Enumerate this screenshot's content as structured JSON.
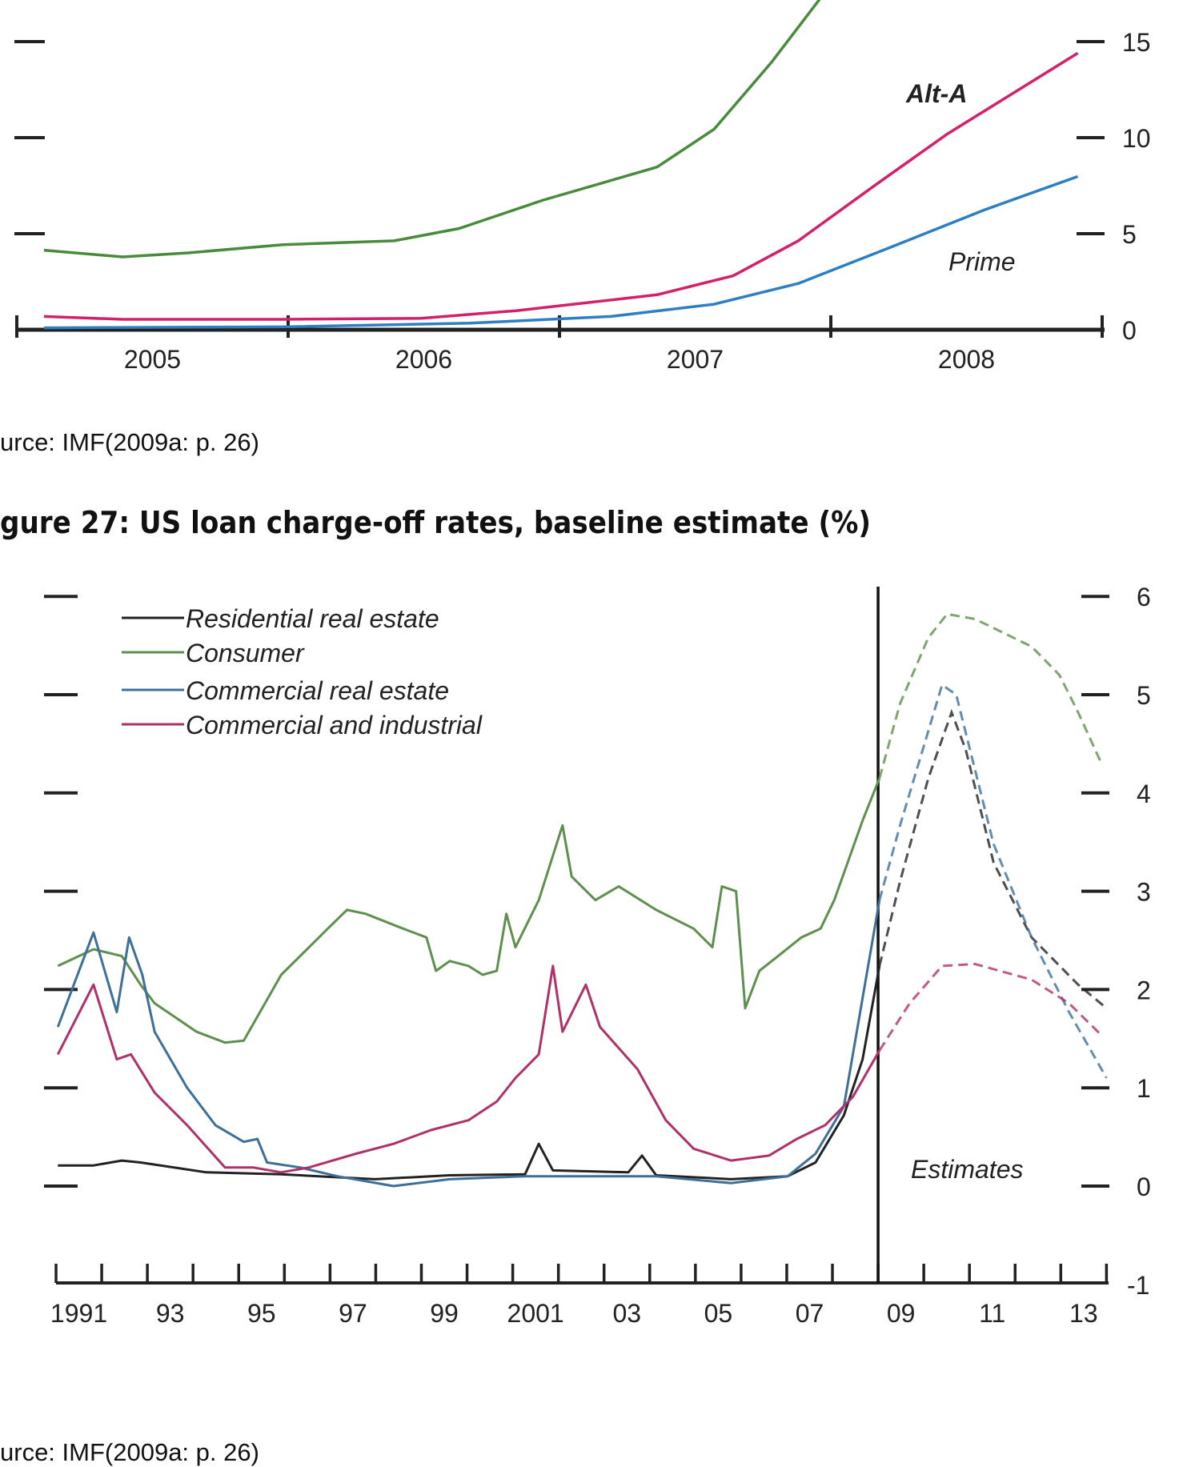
{
  "chart_data": [
    {
      "type": "line",
      "xlim": [
        2005,
        2009
      ],
      "ylim": [
        0,
        18
      ],
      "x_tick_labels": [
        {
          "label": "2005",
          "x": 2005.5
        },
        {
          "label": "2006",
          "x": 2006.5
        },
        {
          "label": "2007",
          "x": 2007.5
        },
        {
          "label": "2008",
          "x": 2008.5
        }
      ],
      "y_ticks": [
        0,
        5,
        10,
        15
      ],
      "y_tick_labels": [
        "0",
        "5",
        "10",
        "15"
      ],
      "annotations": [
        {
          "text": "Alt-A",
          "series": 1
        },
        {
          "text": "Prime",
          "series": 2
        }
      ],
      "colors": [
        "#4a8a3c",
        "#d4206a",
        "#2e7fc2"
      ],
      "series": [
        {
          "x": [
            2005.1,
            2005.39,
            2005.63,
            2005.98,
            2006.39,
            2006.63,
            2006.94,
            2007.36,
            2007.57,
            2007.78,
            2007.98
          ],
          "y": [
            4.14,
            3.79,
            4.0,
            4.43,
            4.63,
            5.27,
            6.75,
            8.47,
            10.44,
            13.9,
            17.6
          ]
        },
        {
          "x": [
            2005.1,
            2005.39,
            2005.98,
            2006.49,
            2006.84,
            2007.36,
            2007.64,
            2007.88,
            2008.16,
            2008.43,
            2008.91
          ],
          "y": [
            0.69,
            0.54,
            0.54,
            0.59,
            0.99,
            1.82,
            2.81,
            4.63,
            7.49,
            10.2,
            14.4
          ]
        },
        {
          "x": [
            2005.1,
            2005.98,
            2006.67,
            2007.19,
            2007.57,
            2007.88,
            2008.22,
            2008.57,
            2008.91
          ],
          "y": [
            0.1,
            0.15,
            0.34,
            0.69,
            1.33,
            2.41,
            4.29,
            6.26,
            7.98
          ]
        }
      ]
    },
    {
      "type": "line",
      "title": "gure 27: US loan charge-off rates, baseline estimate (%)",
      "xlim": [
        1991,
        2014
      ],
      "ylim": [
        -1,
        6
      ],
      "x_tick_labels": [
        {
          "label": "1991",
          "x": 1991.5
        },
        {
          "label": "93",
          "x": 1993.5
        },
        {
          "label": "95",
          "x": 1995.5
        },
        {
          "label": "97",
          "x": 1997.5
        },
        {
          "label": "99",
          "x": 1999.5
        },
        {
          "label": "2001",
          "x": 2001.5
        },
        {
          "label": "03",
          "x": 2003.5
        },
        {
          "label": "05",
          "x": 2005.5
        },
        {
          "label": "07",
          "x": 2007.5
        },
        {
          "label": "09",
          "x": 2009.5
        },
        {
          "label": "11",
          "x": 2011.5
        },
        {
          "label": "13",
          "x": 2013.5
        }
      ],
      "y_ticks": [
        -1,
        0,
        1,
        2,
        3,
        4,
        5,
        6
      ],
      "y_tick_labels": [
        "-1",
        "0",
        "1",
        "2",
        "3",
        "4",
        "5",
        "6"
      ],
      "estimates_start": 2009.0,
      "annotations": [
        {
          "text": "Estimates"
        }
      ],
      "legend": "top-left",
      "series": [
        {
          "name": "Residential real estate",
          "color": "#222222",
          "x": [
            1991.04,
            1991.82,
            1992.44,
            1992.85,
            1994.29,
            1995.93,
            1997.98,
            1999.62,
            2001.27,
            2001.57,
            2001.88,
            2003.53,
            2003.83,
            2004.14,
            2005.78,
            2007.02,
            2007.63,
            2008.25,
            2008.66,
            2009.03,
            2009.48,
            2010.1,
            2010.61,
            2010.92,
            2011.53,
            2012.36,
            2013.38,
            2014.0
          ],
          "y": [
            0.21,
            0.21,
            0.26,
            0.24,
            0.14,
            0.12,
            0.07,
            0.11,
            0.12,
            0.43,
            0.16,
            0.14,
            0.31,
            0.11,
            0.07,
            0.1,
            0.24,
            0.72,
            1.29,
            2.24,
            3.1,
            4.15,
            4.82,
            4.44,
            3.29,
            2.53,
            2.05,
            1.81
          ]
        },
        {
          "name": "Consumer",
          "color": "#5e8f4e",
          "x": [
            1991.04,
            1991.82,
            1992.44,
            1992.85,
            1993.16,
            1994.08,
            1994.7,
            1995.11,
            1995.93,
            1996.54,
            1996.95,
            1997.37,
            1997.78,
            1998.6,
            1999.11,
            1999.32,
            1999.62,
            2000.03,
            2000.34,
            2000.65,
            2000.86,
            2001.06,
            2001.57,
            2002.09,
            2002.29,
            2002.81,
            2003.32,
            2004.14,
            2004.96,
            2005.37,
            2005.58,
            2005.89,
            2006.09,
            2006.4,
            2006.81,
            2007.32,
            2007.74,
            2008.04,
            2008.66,
            2009.03,
            2009.48,
            2010.1,
            2010.51,
            2011.12,
            2012.36,
            2012.97,
            2013.38,
            2013.9
          ],
          "y": [
            2.24,
            2.41,
            2.34,
            2.05,
            1.86,
            1.57,
            1.46,
            1.48,
            2.15,
            2.43,
            2.62,
            2.81,
            2.77,
            2.62,
            2.53,
            2.19,
            2.29,
            2.24,
            2.15,
            2.19,
            2.77,
            2.43,
            2.91,
            3.67,
            3.15,
            2.91,
            3.05,
            2.81,
            2.62,
            2.43,
            3.05,
            3.0,
            1.81,
            2.19,
            2.34,
            2.53,
            2.62,
            2.91,
            3.72,
            4.15,
            4.91,
            5.58,
            5.82,
            5.77,
            5.49,
            5.2,
            4.82,
            4.29
          ]
        },
        {
          "name": "Commercial real estate",
          "color": "#3d6f98",
          "x": [
            1991.04,
            1991.82,
            1992.33,
            1992.6,
            1992.89,
            1993.16,
            1993.87,
            1994.49,
            1995.11,
            1995.41,
            1995.62,
            1996.34,
            1997.16,
            1998.39,
            1999.62,
            2001.27,
            2002.91,
            2004.14,
            2005.78,
            2007.02,
            2007.63,
            2008.25,
            2009.03,
            2009.48,
            2010.1,
            2010.4,
            2010.71,
            2011.53,
            2012.36,
            2013.18,
            2014.0
          ],
          "y": [
            1.62,
            2.58,
            1.77,
            2.53,
            2.15,
            1.57,
            1.0,
            0.62,
            0.45,
            0.48,
            0.24,
            0.19,
            0.1,
            0.0,
            0.07,
            0.1,
            0.1,
            0.1,
            0.03,
            0.1,
            0.33,
            0.81,
            2.91,
            3.67,
            4.63,
            5.1,
            5.0,
            3.48,
            2.53,
            1.77,
            1.1
          ]
        },
        {
          "name": "Commercial and industrial",
          "color": "#b0306a",
          "x": [
            1991.04,
            1991.82,
            1992.33,
            1992.64,
            1993.16,
            1993.87,
            1994.7,
            1995.31,
            1995.93,
            1996.54,
            1997.57,
            1998.39,
            1999.21,
            2000.03,
            2000.65,
            2001.06,
            2001.57,
            2001.88,
            2002.09,
            2002.6,
            2002.91,
            2003.73,
            2004.35,
            2004.96,
            2005.78,
            2006.61,
            2007.22,
            2007.84,
            2008.45,
            2009.03,
            2009.69,
            2010.4,
            2011.12,
            2012.36,
            2013.18,
            2013.9
          ],
          "y": [
            1.34,
            2.05,
            1.29,
            1.34,
            0.95,
            0.62,
            0.19,
            0.19,
            0.14,
            0.19,
            0.33,
            0.43,
            0.57,
            0.67,
            0.86,
            1.1,
            1.34,
            2.24,
            1.57,
            2.05,
            1.62,
            1.19,
            0.67,
            0.38,
            0.26,
            0.31,
            0.48,
            0.62,
            0.91,
            1.38,
            1.86,
            2.24,
            2.26,
            2.1,
            1.86,
            1.53
          ]
        }
      ]
    }
  ],
  "captions": {
    "top_source": "urce: IMF(2009a: p. 26)",
    "bottom_source": "urce: IMF(2009a: p. 26)"
  }
}
